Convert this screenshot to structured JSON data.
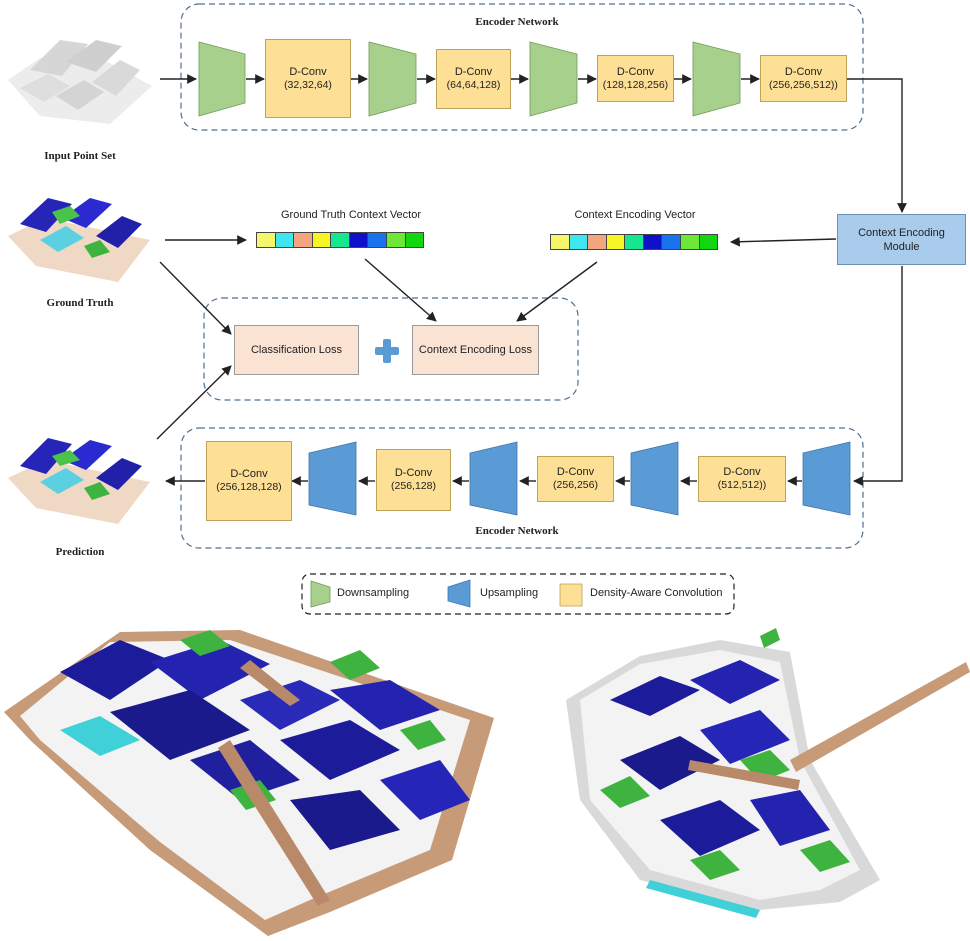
{
  "encoder": {
    "title": "Encoder Network",
    "blocks": [
      "D-Conv",
      "D-Conv",
      "D-Conv",
      "D-Conv"
    ],
    "dims": [
      "(32,32,64)",
      "(64,64,128)",
      "(128,128,256)",
      "(256,256,512))"
    ]
  },
  "decoder": {
    "title": "Encoder Network",
    "blocks": [
      "D-Conv",
      "D-Conv",
      "D-Conv",
      "D-Conv"
    ],
    "dims": [
      "(256,128,128)",
      "(256,128)",
      "(256,256)",
      "(512,512))"
    ]
  },
  "inputs": {
    "input_point_set": "Input Point Set",
    "ground_truth": "Ground Truth",
    "prediction": "Prediction"
  },
  "vectors": {
    "gt_label": "Ground Truth Context Vector",
    "enc_label": "Context Encoding Vector",
    "gt_colors": [
      "#f6f66a",
      "#3ee6f0",
      "#f2a57f",
      "#f6f626",
      "#16e68e",
      "#0f10c8",
      "#1a73ee",
      "#6ee838",
      "#12d60f"
    ],
    "enc_colors": [
      "#f6f66a",
      "#3ee6f0",
      "#f2a57f",
      "#f6f626",
      "#16e68e",
      "#0f10c8",
      "#1a73ee",
      "#6ee838",
      "#12d60f"
    ]
  },
  "context_module": {
    "label": "Context Encoding Module"
  },
  "loss": {
    "classification": "Classification Loss",
    "context": "Context Encoding Loss"
  },
  "legend": {
    "downsampling": "Downsampling",
    "upsampling": "Upsampling",
    "dac": "Density-Aware Convolution"
  },
  "colors": {
    "downsample": "#a8d08d",
    "upsample": "#5b9bd5",
    "conv": "#fddf95",
    "cem": "#a9cbec",
    "loss": "#fbe3d3",
    "plus": "#5b9bd5",
    "building": "#1a1a8c",
    "vegetation": "#3fb33f",
    "ground": "#b98a6a",
    "cyan": "#40d0d8"
  },
  "icons": {
    "plus": "plus-icon"
  }
}
